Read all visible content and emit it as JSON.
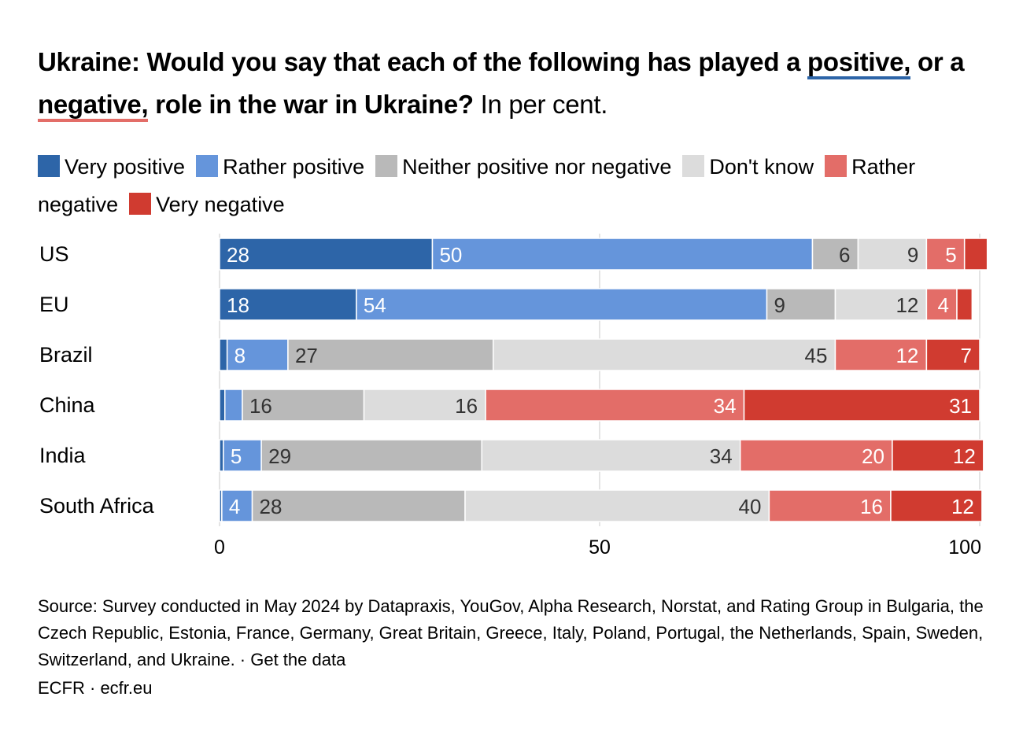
{
  "title": {
    "part1": "Ukraine: Would you say that each of the following has played a ",
    "positive": "positive,",
    "part2": " or a ",
    "negative": "negative,",
    "part3": " role in the war in Ukraine?",
    "subtitle": " In per cent."
  },
  "colors": {
    "very_positive": "#2d65a8",
    "rather_positive": "#6595db",
    "neither": "#b9b9b9",
    "dont_know": "#dcdcdc",
    "rather_negative": "#e36d68",
    "very_negative": "#d03b30"
  },
  "chart_data": {
    "type": "bar",
    "orientation": "horizontal-stacked",
    "categories": [
      "US",
      "EU",
      "Brazil",
      "China",
      "India",
      "South Africa"
    ],
    "series": [
      {
        "name": "Very positive",
        "values": [
          28,
          18,
          1,
          0.7,
          0.5,
          0.3
        ],
        "labels": [
          "28",
          "18",
          "",
          "",
          "",
          ""
        ]
      },
      {
        "name": "Rather positive",
        "values": [
          50,
          54,
          8,
          2.3,
          5,
          4
        ],
        "labels": [
          "50",
          "54",
          "8",
          "",
          "5",
          "4"
        ]
      },
      {
        "name": "Neither positive nor negative",
        "values": [
          6,
          9,
          27,
          16,
          29,
          28
        ],
        "labels": [
          "6",
          "9",
          "27",
          "16",
          "29",
          "28"
        ]
      },
      {
        "name": "Don't know",
        "values": [
          9,
          12,
          45,
          16,
          34,
          40
        ],
        "labels": [
          "9",
          "12",
          "45",
          "16",
          "34",
          "40"
        ]
      },
      {
        "name": "Rather negative",
        "values": [
          5,
          4,
          12,
          34,
          20,
          16
        ],
        "labels": [
          "5",
          "4",
          "12",
          "34",
          "20",
          "16"
        ]
      },
      {
        "name": "Very negative",
        "values": [
          3,
          2,
          7,
          31,
          12,
          12
        ],
        "labels": [
          "",
          "",
          "7",
          "31",
          "12",
          "12"
        ]
      }
    ],
    "xlim": [
      0,
      100
    ],
    "xticks": [
      0,
      50,
      100
    ],
    "grid": true,
    "legend_position": "top"
  },
  "source": "Source: Survey conducted in May 2024 by Datapraxis, YouGov, Alpha Research, Norstat, and Rating Group in Bulgaria, the Czech Republic, Estonia, France, Germany, Great Britain, Greece, Italy, Poland, Portugal, the Netherlands, Spain, Sweden, Switzerland, and Ukraine. · Get the data",
  "credit": "ECFR · ecfr.eu"
}
